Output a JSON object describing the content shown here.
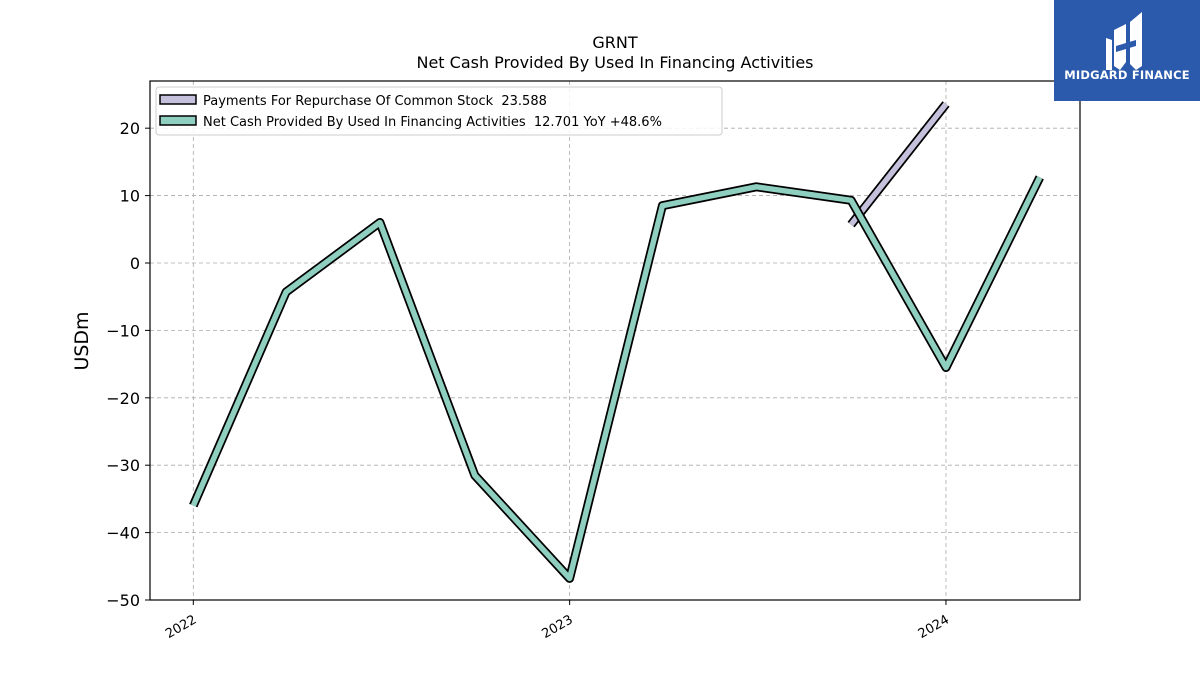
{
  "chart_data": {
    "type": "line",
    "title": "GRNT",
    "subtitle": "Net Cash Provided By Used In Financing Activities",
    "ylabel": "USDm",
    "xlabel": "",
    "ylim": [
      -50,
      27
    ],
    "xlim": [
      "2021-11-20",
      "2024-05-10"
    ],
    "yticks": [
      -50,
      -40,
      -30,
      -20,
      -10,
      0,
      10,
      20
    ],
    "ytick_labels": [
      "−50",
      "−40",
      "−30",
      "−20",
      "−10",
      "0",
      "10",
      "20"
    ],
    "xticks": [
      "2022-01-01",
      "2023-01-01",
      "2024-01-01"
    ],
    "xtick_labels": [
      "2022",
      "2023",
      "2024"
    ],
    "grid": true,
    "legend_position": "top-left",
    "series": [
      {
        "name": "Payments For Repurchase Of Common Stock",
        "legend_label": "Payments For Repurchase Of Common Stock  23.588",
        "color": "#c5c1dd",
        "points": [
          {
            "x": "2023-10-01",
            "y": 5.7
          },
          {
            "x": "2024-01-01",
            "y": 23.588
          }
        ]
      },
      {
        "name": "Net Cash Provided By Used In Financing Activities",
        "legend_label": "Net Cash Provided By Used In Financing Activities  12.701 YoY +48.6%",
        "color": "#8ecfbf",
        "points": [
          {
            "x": "2022-01-01",
            "y": -36.0
          },
          {
            "x": "2022-04-01",
            "y": -4.3
          },
          {
            "x": "2022-07-01",
            "y": 6.0
          },
          {
            "x": "2022-10-01",
            "y": -31.5
          },
          {
            "x": "2023-01-01",
            "y": -46.8
          },
          {
            "x": "2023-04-01",
            "y": 8.5
          },
          {
            "x": "2023-07-01",
            "y": 11.3
          },
          {
            "x": "2023-10-01",
            "y": 9.3
          },
          {
            "x": "2024-01-01",
            "y": -15.5
          },
          {
            "x": "2024-04-01",
            "y": 12.701
          }
        ]
      }
    ]
  },
  "logo": {
    "text": "MIDGARD FINANCE",
    "bg_color": "#2b5aad"
  }
}
